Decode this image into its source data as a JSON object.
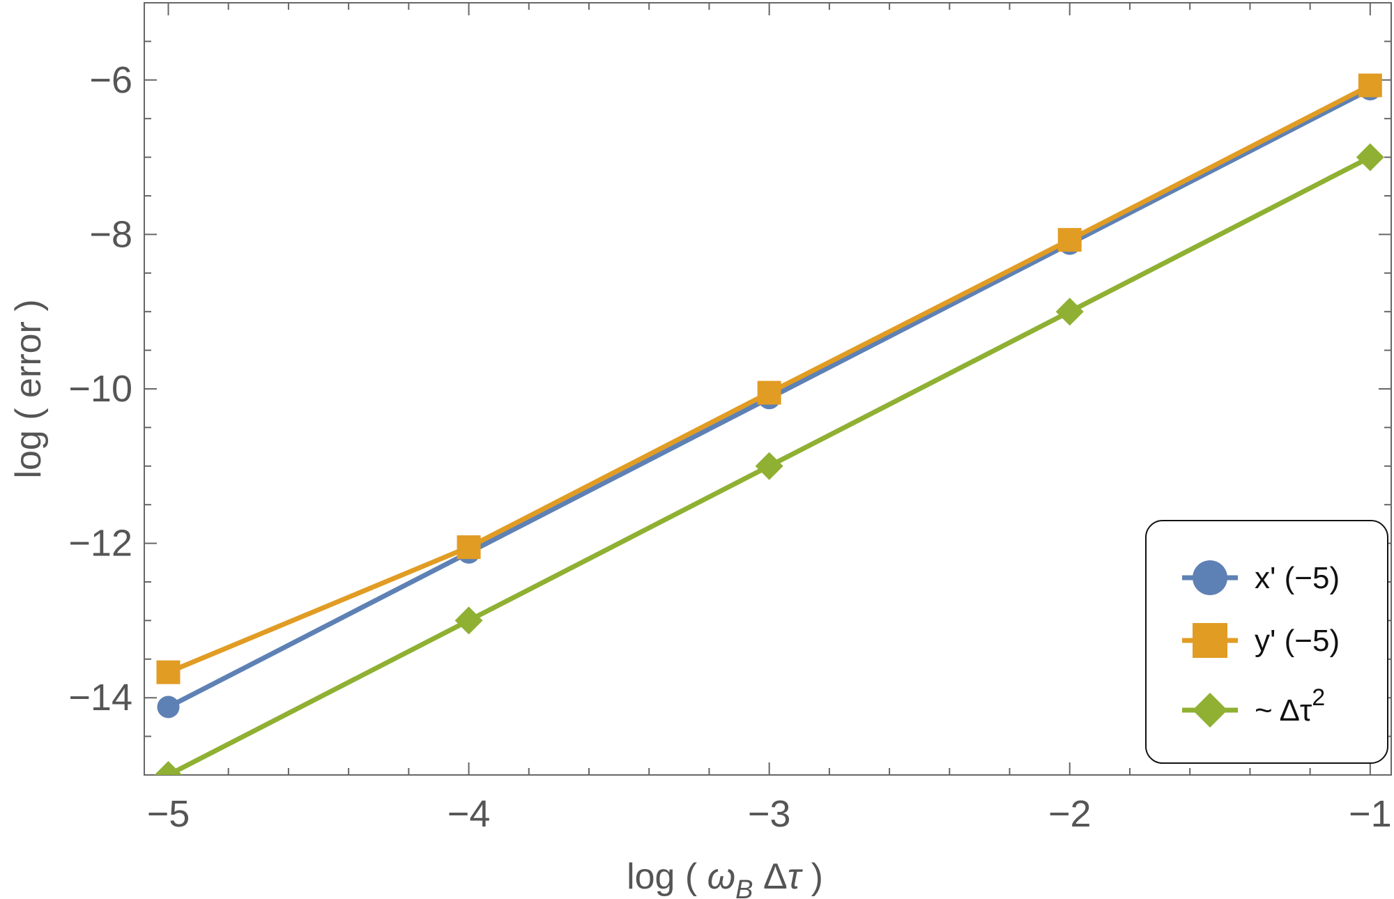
{
  "chart_data": {
    "type": "line",
    "xlabel": {
      "prefix": "log ( ",
      "omega": "ω",
      "sub": "B",
      "rest": " Δ",
      "tau": "τ",
      "suffix": " )"
    },
    "ylabel": "log ( error )",
    "xlim": [
      -5.08,
      -0.93
    ],
    "ylim": [
      -15,
      -5.0
    ],
    "x_ticks": [
      -5,
      -4,
      -3,
      -2,
      -1
    ],
    "x_tick_labels": [
      "−5",
      "−4",
      "−3",
      "−2",
      "−1"
    ],
    "y_ticks": [
      -14,
      -12,
      -10,
      -8,
      -6
    ],
    "y_tick_labels": [
      "−14",
      "−12",
      "−10",
      "−8",
      "−6"
    ],
    "x": [
      -5,
      -4,
      -3,
      -2,
      -1
    ],
    "series": [
      {
        "name": "x' (−5)",
        "marker": "circle",
        "color": "#5E81B5",
        "values": [
          -14.12,
          -12.12,
          -10.12,
          -8.12,
          -6.12
        ]
      },
      {
        "name": "y' (−5)",
        "marker": "square",
        "color": "#E19C24",
        "values": [
          -13.67,
          -12.05,
          -10.05,
          -8.07,
          -6.07
        ]
      },
      {
        "name": "~ Δτ²",
        "marker": "diamond",
        "color": "#8FB032",
        "values": [
          -15.0,
          -13.0,
          -11.0,
          -9.0,
          -7.0
        ]
      }
    ],
    "legend_labels": {
      "s0": "x' (−5)",
      "s1": "y' (−5)",
      "s2_base": "~ Δτ",
      "s2_sup": "2"
    },
    "legend_position": "bottom-right",
    "grid": false
  }
}
